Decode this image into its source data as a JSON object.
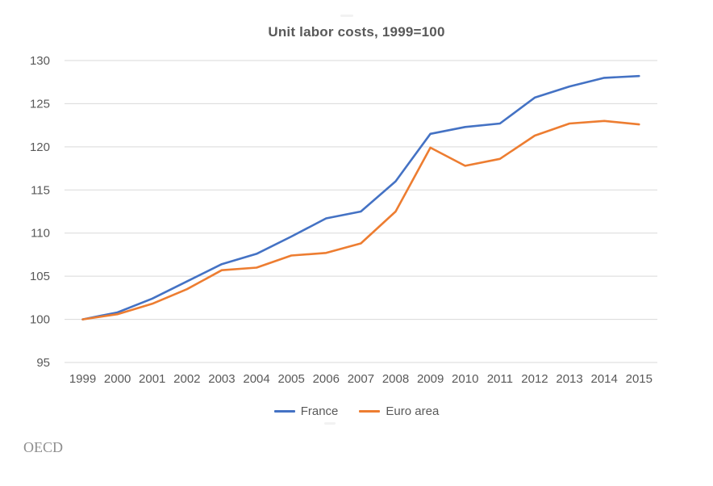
{
  "page": {
    "source_label": "OECD"
  },
  "chart_data": {
    "type": "line",
    "title": "Unit labor costs, 1999=100",
    "x": [
      1999,
      2000,
      2001,
      2002,
      2003,
      2004,
      2005,
      2006,
      2007,
      2008,
      2009,
      2010,
      2011,
      2012,
      2013,
      2014,
      2015
    ],
    "series": [
      {
        "name": "France",
        "color": "#4472C4",
        "values": [
          100,
          100.8,
          102.4,
          104.4,
          106.4,
          107.6,
          109.6,
          111.7,
          112.5,
          116.0,
          121.5,
          122.3,
          122.7,
          125.7,
          127.0,
          128.0,
          128.2
        ]
      },
      {
        "name": "Euro area",
        "color": "#ED7D31",
        "values": [
          100,
          100.6,
          101.8,
          103.5,
          105.7,
          106.0,
          107.4,
          107.7,
          108.8,
          112.5,
          119.9,
          117.8,
          118.6,
          121.3,
          122.7,
          123.0,
          122.6
        ]
      }
    ],
    "ylim": [
      95,
      130
    ],
    "yticks": [
      95,
      100,
      105,
      110,
      115,
      120,
      125,
      130
    ],
    "grid": true,
    "gridline_color": "#D9D9D9",
    "tick_label_color": "#595959",
    "legend_position": "bottom",
    "xlabel": "",
    "ylabel": ""
  }
}
